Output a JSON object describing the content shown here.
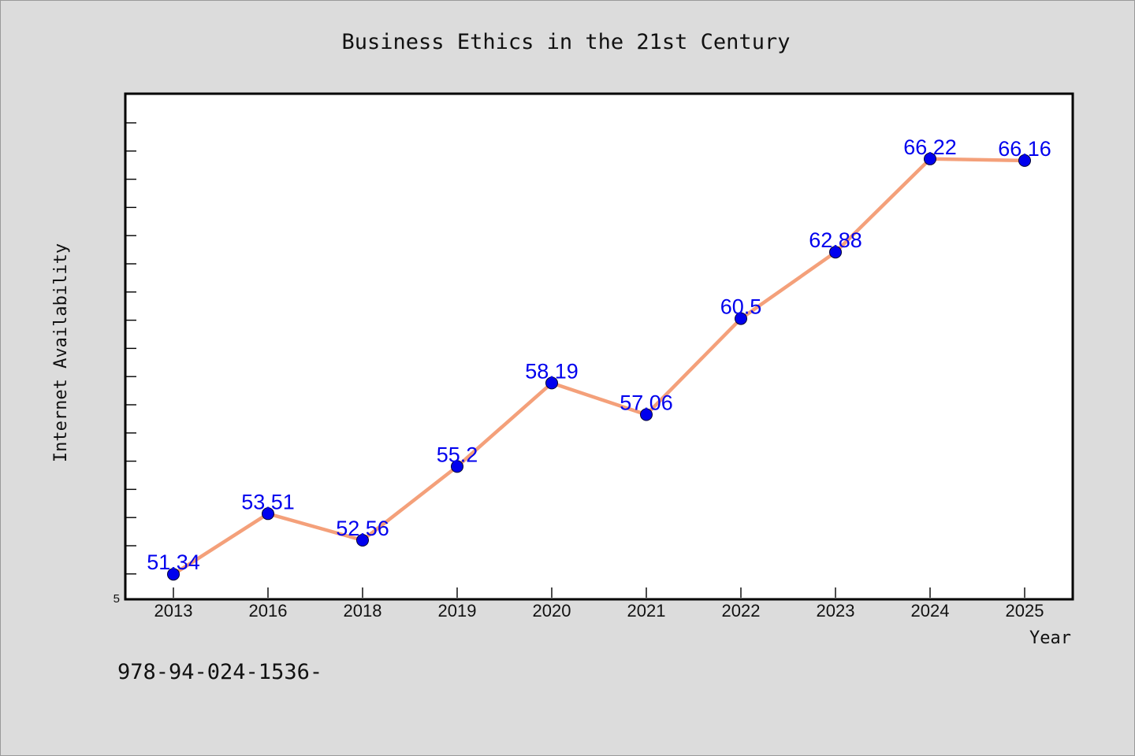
{
  "chart_data": {
    "type": "line",
    "title": "Business Ethics in the 21st Century",
    "xlabel": "Year",
    "ylabel": "Internet Availability",
    "categories": [
      "2013",
      "2016",
      "2018",
      "2019",
      "2020",
      "2021",
      "2022",
      "2023",
      "2024",
      "2025"
    ],
    "series": [
      {
        "values": [
          51.34,
          53.51,
          52.56,
          55.2,
          58.19,
          57.06,
          60.5,
          62.88,
          66.22,
          66.16
        ]
      }
    ],
    "data_labels": [
      "51.34",
      "53.51",
      "52.56",
      "55.2",
      "58.19",
      "57.06",
      "60.5",
      "62.88",
      "66.22",
      "66.16"
    ],
    "y_tick_labels": [
      "5"
    ],
    "ylim": [
      50.5,
      68.5
    ],
    "grid": false,
    "line_color": "#f4a07a",
    "marker_color": "#0000ee",
    "label_color": "#0000ee",
    "background_color": "#dcdcdc",
    "plot_background_color": "#ffffff"
  },
  "footnote": "978-94-024-1536-"
}
